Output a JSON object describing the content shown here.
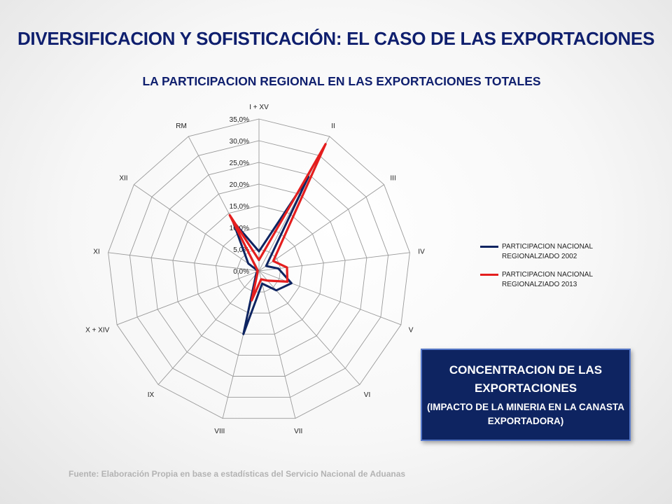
{
  "page": {
    "title": "DIVERSIFICACION Y SOFISTICACIÓN: EL CASO DE LAS EXPORTACIONES",
    "subtitle": "LA PARTICIPACION REGIONAL EN LAS EXPORTACIONES TOTALES",
    "note_line1": "CONCENTRACION DE LAS EXPORTACIONES",
    "note_line2": "(IMPACTO DE LA MINERIA EN LA CANASTA EXPORTADORA)",
    "source": "Fuente: Elaboración Propia en base a estadísticas del Servicio Nacional de Aduanas"
  },
  "colors": {
    "title": "#0f1f6e",
    "series_2002": "#0e2461",
    "series_2013": "#e41e1e",
    "note_box": "#0e2461",
    "grid": "#9a9a9a"
  },
  "chart_data": {
    "type": "radar",
    "categories": [
      "I + XV",
      "II",
      "III",
      "IV",
      "V",
      "VI",
      "VII",
      "VIII",
      "IX",
      "X + XIV",
      "XI",
      "XII",
      "RM"
    ],
    "rlim": [
      0,
      35
    ],
    "tick_values": [
      0,
      5,
      10,
      15,
      20,
      25,
      30,
      35
    ],
    "tick_labels": [
      "0,0%",
      "5,0%",
      "10,0%",
      "15,0%",
      "20,0%",
      "25,0%",
      "30,0%",
      "35,0%"
    ],
    "grid": true,
    "legend_position": "right",
    "series": [
      {
        "name": "PARTICIPACION NACIONAL REGIONALZIADO 2002",
        "color": "#0e2461",
        "values": [
          4.5,
          24.5,
          2.0,
          4.5,
          8.0,
          6.0,
          3.0,
          15.0,
          1.0,
          0.5,
          0.3,
          3.0,
          13.0
        ]
      },
      {
        "name": "PARTICIPACION NACIONAL REGIONALZIADO 2013",
        "color": "#e41e1e",
        "values": [
          2.5,
          33.0,
          4.0,
          6.5,
          7.0,
          3.0,
          2.0,
          7.0,
          0.5,
          0.5,
          0.3,
          0.5,
          14.5
        ]
      }
    ]
  }
}
